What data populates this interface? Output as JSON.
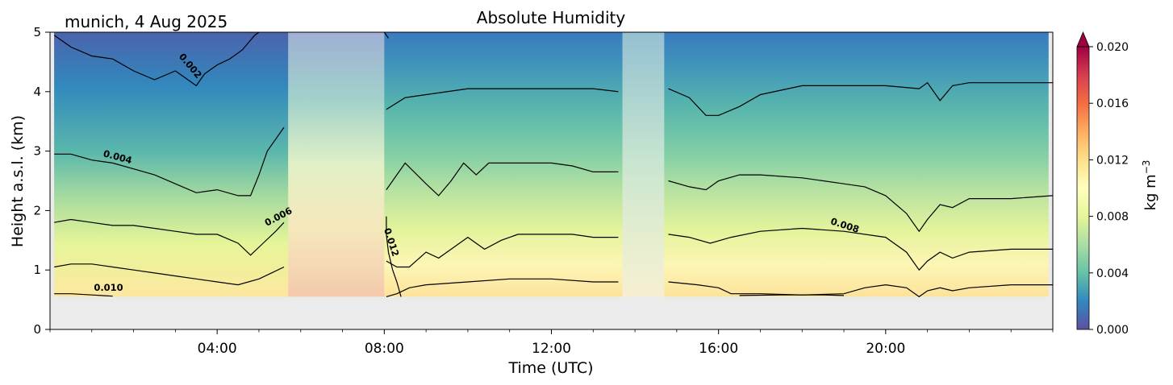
{
  "chart_data": {
    "type": "heatmap",
    "title": "Absolute Humidity",
    "subtitle": "munich, 4 Aug 2025",
    "xlabel": "Time (UTC)",
    "ylabel": "Height a.s.l. (km)",
    "xlim_hours": [
      0,
      24
    ],
    "ylim_km": [
      0,
      5
    ],
    "x_ticks": [
      {
        "hour": 4,
        "label": "04:00"
      },
      {
        "hour": 8,
        "label": "08:00"
      },
      {
        "hour": 12,
        "label": "12:00"
      },
      {
        "hour": 16,
        "label": "16:00"
      },
      {
        "hour": 20,
        "label": "20:00"
      }
    ],
    "y_ticks": [
      {
        "value": 0,
        "label": "0"
      },
      {
        "value": 1,
        "label": "1"
      },
      {
        "value": 2,
        "label": "2"
      },
      {
        "value": 3,
        "label": "3"
      },
      {
        "value": 4,
        "label": "4"
      },
      {
        "value": 5,
        "label": "5"
      }
    ],
    "lowest_data_height_km": 0.55,
    "colorbar": {
      "label": "kg m",
      "label_superscript": "−3",
      "range": [
        0.0,
        0.02
      ],
      "extend": "max",
      "ticks": [
        {
          "value": 0.0,
          "label": "0.000"
        },
        {
          "value": 0.004,
          "label": "0.004"
        },
        {
          "value": 0.008,
          "label": "0.008"
        },
        {
          "value": 0.012,
          "label": "0.012"
        },
        {
          "value": 0.016,
          "label": "0.016"
        },
        {
          "value": 0.02,
          "label": "0.020"
        }
      ],
      "colors": [
        "#5e4fa2",
        "#3288bd",
        "#66c2a5",
        "#abdda4",
        "#e6f598",
        "#ffffbf",
        "#fee08b",
        "#fdae61",
        "#f46d43",
        "#d53e4f",
        "#9e0142"
      ]
    },
    "masked_intervals_hours": [
      [
        5.7,
        8.0
      ],
      [
        13.7,
        14.7
      ]
    ],
    "contour_levels": [
      0.002,
      0.004,
      0.006,
      0.008,
      0.01,
      0.012
    ],
    "contour_lines": [
      {
        "level": 0.002,
        "points": [
          [
            0.1,
            4.95
          ],
          [
            0.5,
            4.75
          ],
          [
            1.0,
            4.6
          ],
          [
            1.5,
            4.55
          ],
          [
            2.0,
            4.35
          ],
          [
            2.5,
            4.2
          ],
          [
            3.0,
            4.35
          ],
          [
            3.3,
            4.2
          ],
          [
            3.5,
            4.1
          ],
          [
            3.7,
            4.3
          ],
          [
            4.0,
            4.45
          ],
          [
            4.3,
            4.55
          ],
          [
            4.6,
            4.7
          ],
          [
            4.9,
            4.95
          ],
          [
            5.0,
            5.0
          ]
        ]
      },
      {
        "level": 0.004,
        "points": [
          [
            0.1,
            2.95
          ],
          [
            0.5,
            2.95
          ],
          [
            1.0,
            2.85
          ],
          [
            1.5,
            2.8
          ],
          [
            2.0,
            2.7
          ],
          [
            2.5,
            2.6
          ],
          [
            3.0,
            2.45
          ],
          [
            3.5,
            2.3
          ],
          [
            4.0,
            2.35
          ],
          [
            4.5,
            2.25
          ],
          [
            4.8,
            2.25
          ],
          [
            5.0,
            2.6
          ],
          [
            5.2,
            3.0
          ],
          [
            5.4,
            3.2
          ],
          [
            5.6,
            3.4
          ]
        ]
      },
      {
        "level": 0.004,
        "points": [
          [
            8.05,
            3.7
          ],
          [
            8.5,
            3.9
          ],
          [
            9.0,
            3.95
          ],
          [
            10.0,
            4.05
          ],
          [
            11.0,
            4.05
          ],
          [
            12.0,
            4.05
          ],
          [
            13.0,
            4.05
          ],
          [
            13.6,
            4.0
          ]
        ]
      },
      {
        "level": 0.004,
        "points": [
          [
            14.8,
            4.05
          ],
          [
            15.3,
            3.9
          ],
          [
            15.7,
            3.6
          ],
          [
            16.0,
            3.6
          ],
          [
            16.5,
            3.75
          ],
          [
            17.0,
            3.95
          ],
          [
            18.0,
            4.1
          ],
          [
            19.0,
            4.1
          ],
          [
            20.0,
            4.1
          ],
          [
            20.8,
            4.05
          ],
          [
            21.0,
            4.15
          ],
          [
            21.3,
            3.85
          ],
          [
            21.6,
            4.1
          ],
          [
            22.0,
            4.15
          ],
          [
            23.0,
            4.15
          ],
          [
            24.0,
            4.15
          ]
        ]
      },
      {
        "level": 0.006,
        "points": [
          [
            0.1,
            1.8
          ],
          [
            0.5,
            1.85
          ],
          [
            1.0,
            1.8
          ],
          [
            1.5,
            1.75
          ],
          [
            2.0,
            1.75
          ],
          [
            2.5,
            1.7
          ],
          [
            3.0,
            1.65
          ],
          [
            3.5,
            1.6
          ],
          [
            4.0,
            1.6
          ],
          [
            4.5,
            1.45
          ],
          [
            4.8,
            1.25
          ],
          [
            5.1,
            1.45
          ],
          [
            5.4,
            1.65
          ],
          [
            5.6,
            1.8
          ]
        ]
      },
      {
        "level": 0.006,
        "points": [
          [
            8.05,
            2.35
          ],
          [
            8.5,
            2.8
          ],
          [
            9.0,
            2.45
          ],
          [
            9.3,
            2.25
          ],
          [
            9.6,
            2.5
          ],
          [
            9.9,
            2.8
          ],
          [
            10.2,
            2.6
          ],
          [
            10.5,
            2.8
          ],
          [
            11.0,
            2.8
          ],
          [
            12.0,
            2.8
          ],
          [
            12.5,
            2.75
          ],
          [
            13.0,
            2.65
          ],
          [
            13.6,
            2.65
          ]
        ]
      },
      {
        "level": 0.006,
        "points": [
          [
            14.8,
            2.5
          ],
          [
            15.3,
            2.4
          ],
          [
            15.7,
            2.35
          ],
          [
            16.0,
            2.5
          ],
          [
            16.5,
            2.6
          ],
          [
            17.0,
            2.6
          ],
          [
            18.0,
            2.55
          ],
          [
            19.0,
            2.45
          ],
          [
            19.5,
            2.4
          ],
          [
            20.0,
            2.25
          ],
          [
            20.5,
            1.95
          ],
          [
            20.8,
            1.65
          ],
          [
            21.0,
            1.85
          ],
          [
            21.3,
            2.1
          ],
          [
            21.6,
            2.05
          ],
          [
            22.0,
            2.2
          ],
          [
            23.0,
            2.2
          ],
          [
            24.0,
            2.25
          ]
        ]
      },
      {
        "level": 0.008,
        "points": [
          [
            0.1,
            1.05
          ],
          [
            0.5,
            1.1
          ],
          [
            1.0,
            1.1
          ],
          [
            1.5,
            1.05
          ],
          [
            2.0,
            1.0
          ],
          [
            2.5,
            0.95
          ],
          [
            3.0,
            0.9
          ],
          [
            3.5,
            0.85
          ],
          [
            4.0,
            0.8
          ],
          [
            4.5,
            0.75
          ],
          [
            5.0,
            0.85
          ],
          [
            5.3,
            0.95
          ],
          [
            5.6,
            1.05
          ]
        ]
      },
      {
        "level": 0.008,
        "points": [
          [
            8.05,
            1.15
          ],
          [
            8.3,
            1.05
          ],
          [
            8.6,
            1.05
          ],
          [
            9.0,
            1.3
          ],
          [
            9.3,
            1.2
          ],
          [
            9.6,
            1.35
          ],
          [
            10.0,
            1.55
          ],
          [
            10.4,
            1.35
          ],
          [
            10.8,
            1.5
          ],
          [
            11.2,
            1.6
          ],
          [
            11.8,
            1.6
          ],
          [
            12.5,
            1.6
          ],
          [
            13.0,
            1.55
          ],
          [
            13.6,
            1.55
          ]
        ]
      },
      {
        "level": 0.008,
        "points": [
          [
            14.8,
            1.6
          ],
          [
            15.3,
            1.55
          ],
          [
            15.8,
            1.45
          ],
          [
            16.3,
            1.55
          ],
          [
            17.0,
            1.65
          ],
          [
            18.0,
            1.7
          ],
          [
            19.0,
            1.65
          ],
          [
            20.0,
            1.55
          ],
          [
            20.5,
            1.3
          ],
          [
            20.8,
            1.0
          ],
          [
            21.0,
            1.15
          ],
          [
            21.3,
            1.3
          ],
          [
            21.6,
            1.2
          ],
          [
            22.0,
            1.3
          ],
          [
            23.0,
            1.35
          ],
          [
            24.0,
            1.35
          ]
        ]
      },
      {
        "level": 0.01,
        "points": [
          [
            0.1,
            0.6
          ],
          [
            0.5,
            0.6
          ],
          [
            1.0,
            0.58
          ],
          [
            1.5,
            0.56
          ]
        ]
      },
      {
        "level": 0.01,
        "points": [
          [
            8.05,
            0.55
          ],
          [
            8.3,
            0.6
          ],
          [
            8.6,
            0.7
          ],
          [
            9.0,
            0.75
          ],
          [
            10.0,
            0.8
          ],
          [
            11.0,
            0.85
          ],
          [
            12.0,
            0.85
          ],
          [
            13.0,
            0.8
          ],
          [
            13.6,
            0.8
          ]
        ]
      },
      {
        "level": 0.01,
        "points": [
          [
            14.8,
            0.8
          ],
          [
            15.5,
            0.75
          ],
          [
            16.0,
            0.7
          ],
          [
            16.3,
            0.6
          ],
          [
            17.0,
            0.6
          ],
          [
            18.0,
            0.58
          ],
          [
            19.0,
            0.6
          ],
          [
            19.5,
            0.7
          ],
          [
            20.0,
            0.75
          ],
          [
            20.5,
            0.7
          ],
          [
            20.8,
            0.55
          ],
          [
            21.0,
            0.65
          ],
          [
            21.3,
            0.7
          ],
          [
            21.6,
            0.65
          ],
          [
            22.0,
            0.7
          ],
          [
            23.0,
            0.75
          ],
          [
            24.0,
            0.75
          ]
        ]
      },
      {
        "level": 0.01,
        "points": [
          [
            16.5,
            0.57
          ],
          [
            17.5,
            0.58
          ],
          [
            18.5,
            0.58
          ],
          [
            19.0,
            0.57
          ]
        ]
      },
      {
        "level": 0.012,
        "points": [
          [
            8.0,
            5.0
          ],
          [
            8.1,
            4.9
          ]
        ]
      },
      {
        "level": 0.012,
        "points": [
          [
            8.05,
            1.9
          ],
          [
            8.05,
            1.6
          ],
          [
            8.1,
            1.3
          ],
          [
            8.2,
            1.0
          ],
          [
            8.3,
            0.8
          ],
          [
            8.4,
            0.55
          ]
        ]
      }
    ],
    "contour_labels": [
      {
        "text": "0.002",
        "hour": 3.3,
        "km": 4.4,
        "rotation": 50
      },
      {
        "text": "0.004",
        "hour": 1.6,
        "km": 2.85,
        "rotation": 15
      },
      {
        "text": "0.006",
        "hour": 5.5,
        "km": 1.85,
        "rotation": -28
      },
      {
        "text": "0.012",
        "hour": 8.1,
        "km": 1.45,
        "rotation": 72
      },
      {
        "text": "0.008",
        "hour": 19.0,
        "km": 1.7,
        "rotation": 18
      },
      {
        "text": "0.010",
        "hour": 1.4,
        "km": 0.65,
        "rotation": 0
      }
    ]
  }
}
